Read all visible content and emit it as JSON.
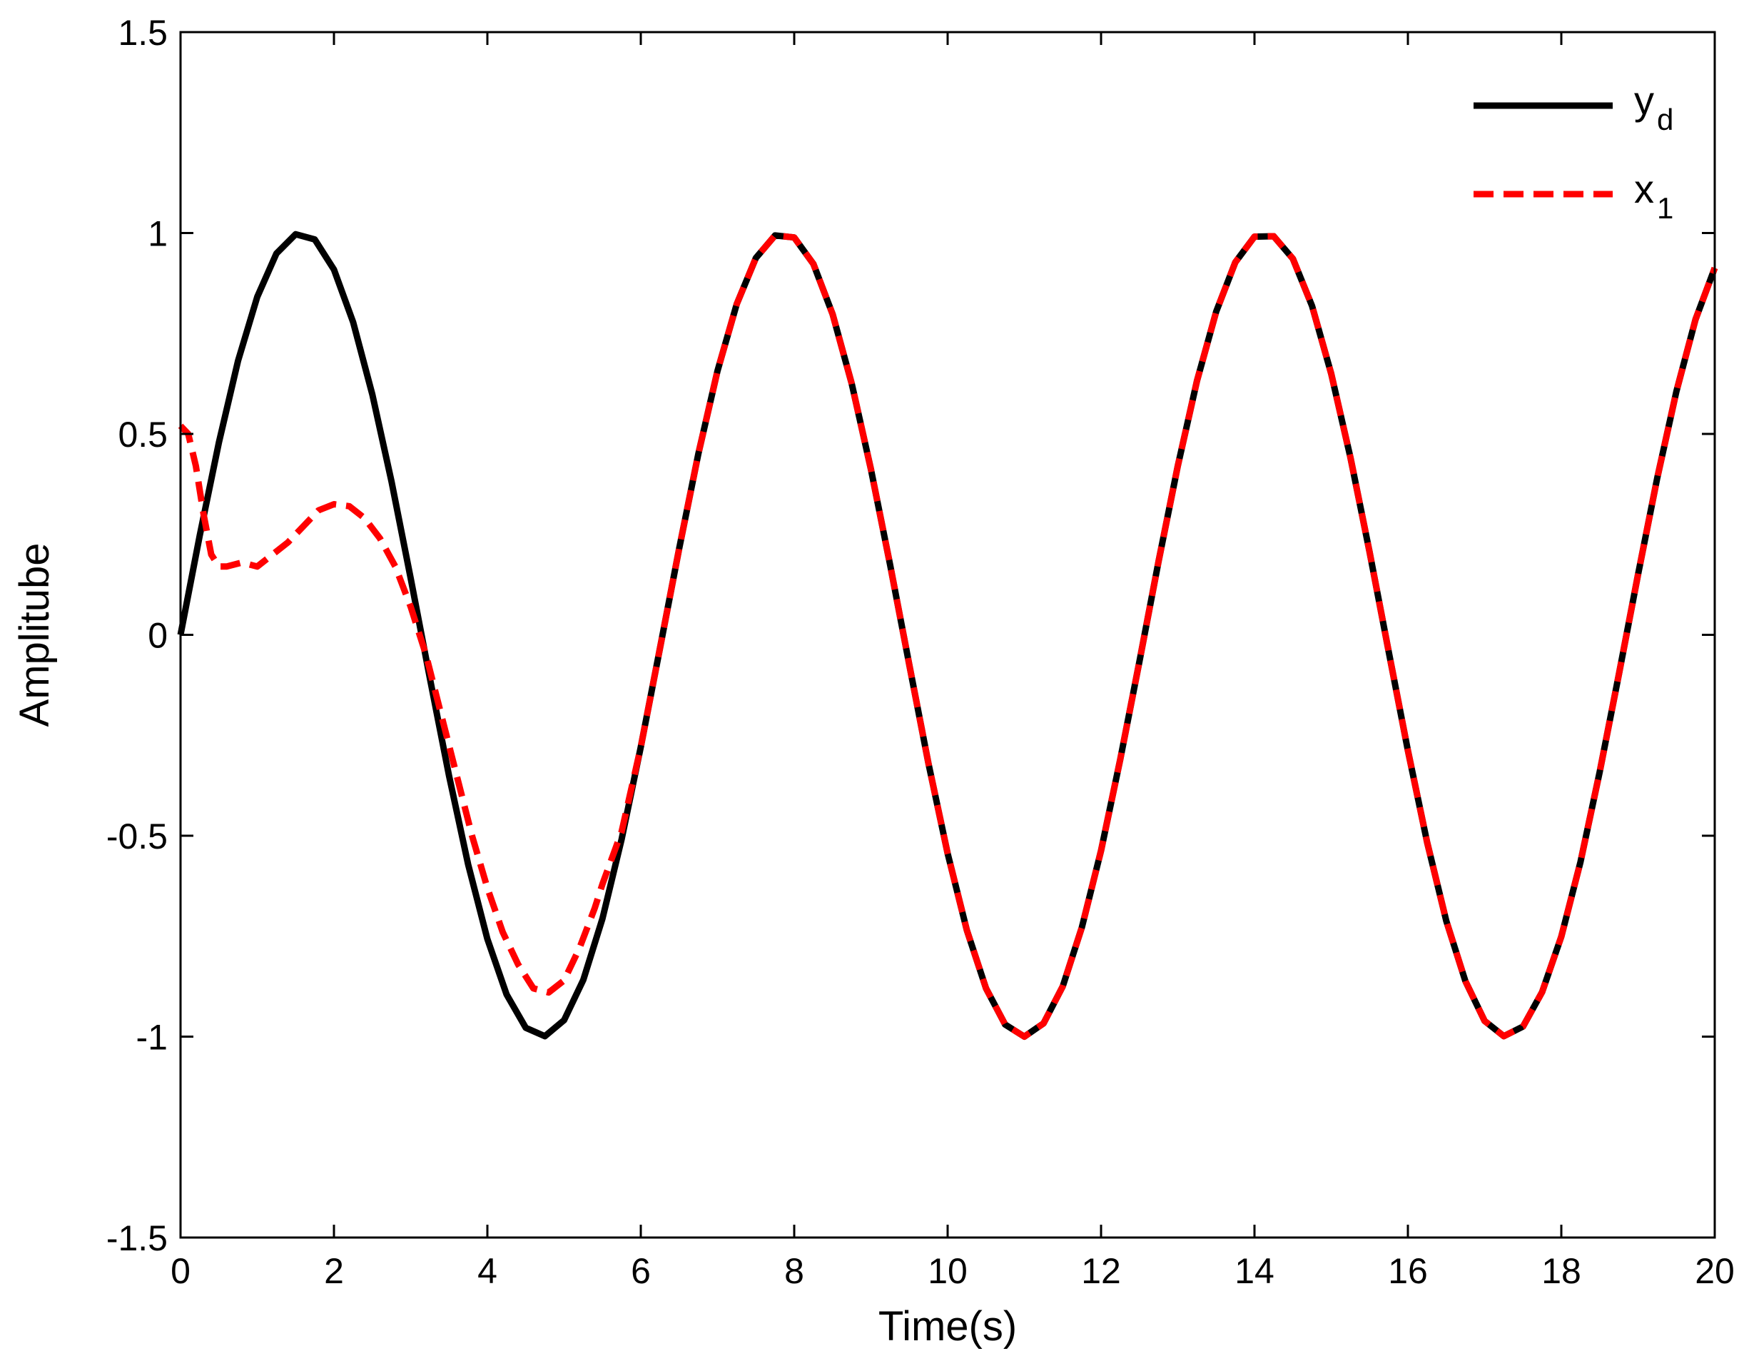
{
  "chart_data": {
    "type": "line",
    "title": "",
    "xlabel": "Time(s)",
    "ylabel": "Amplitube",
    "xlim": [
      0,
      20
    ],
    "ylim": [
      -1.5,
      1.5
    ],
    "xticks": [
      0,
      2,
      4,
      6,
      8,
      10,
      12,
      14,
      16,
      18,
      20
    ],
    "yticks": [
      -1.5,
      -1,
      -0.5,
      0,
      0.5,
      1,
      1.5
    ],
    "xtick_labels": [
      "0",
      "2",
      "4",
      "6",
      "8",
      "10",
      "12",
      "14",
      "16",
      "18",
      "20"
    ],
    "ytick_labels": [
      "-1.5",
      "-1",
      "-0.5",
      "0",
      "0.5",
      "1",
      "1.5"
    ],
    "grid": false,
    "legend_position": "top-right",
    "series": [
      {
        "name": "y_d",
        "legend_main": "y",
        "legend_sub": "d",
        "color": "#000000",
        "style": "solid",
        "x": [
          0,
          0.25,
          0.5,
          0.75,
          1,
          1.25,
          1.5,
          1.75,
          2,
          2.25,
          2.5,
          2.75,
          3,
          3.25,
          3.5,
          3.75,
          4,
          4.25,
          4.5,
          4.75,
          5,
          5.25,
          5.5,
          5.75,
          6,
          6.25,
          6.5,
          6.75,
          7,
          7.25,
          7.5,
          7.75,
          8,
          8.25,
          8.5,
          8.75,
          9,
          9.25,
          9.5,
          9.75,
          10,
          10.25,
          10.5,
          10.75,
          11,
          11.25,
          11.5,
          11.75,
          12,
          12.25,
          12.5,
          12.75,
          13,
          13.25,
          13.5,
          13.75,
          14,
          14.25,
          14.5,
          14.75,
          15,
          15.25,
          15.5,
          15.75,
          16,
          16.25,
          16.5,
          16.75,
          17,
          17.25,
          17.5,
          17.75,
          18,
          18.25,
          18.5,
          18.75,
          19,
          19.25,
          19.5,
          19.75,
          20
        ],
        "y": [
          0,
          0.247,
          0.479,
          0.682,
          0.841,
          0.949,
          0.997,
          0.984,
          0.909,
          0.778,
          0.598,
          0.382,
          0.141,
          -0.108,
          -0.351,
          -0.572,
          -0.757,
          -0.895,
          -0.978,
          -0.999,
          -0.959,
          -0.859,
          -0.706,
          -0.509,
          -0.279,
          -0.033,
          0.215,
          0.45,
          0.657,
          0.823,
          0.938,
          0.994,
          0.989,
          0.923,
          0.798,
          0.625,
          0.412,
          0.174,
          -0.075,
          -0.32,
          -0.544,
          -0.735,
          -0.88,
          -0.97,
          -1.0,
          -0.967,
          -0.875,
          -0.728,
          -0.537,
          -0.31,
          -0.066,
          0.183,
          0.42,
          0.632,
          0.804,
          0.927,
          0.991,
          0.992,
          0.936,
          0.819,
          0.65,
          0.442,
          0.206,
          -0.042,
          -0.288,
          -0.516,
          -0.712,
          -0.862,
          -0.961,
          -0.999,
          -0.975,
          -0.889,
          -0.751,
          -0.565,
          -0.341,
          -0.099,
          0.15,
          0.39,
          0.606,
          0.785,
          0.913
        ]
      },
      {
        "name": "x_1",
        "legend_main": "x",
        "legend_sub": "1",
        "color": "#ff0000",
        "style": "dashed",
        "x": [
          0,
          0.1,
          0.2,
          0.3,
          0.4,
          0.5,
          0.6,
          0.8,
          1.0,
          1.2,
          1.4,
          1.6,
          1.8,
          2.0,
          2.2,
          2.4,
          2.6,
          2.8,
          3.0,
          3.2,
          3.4,
          3.6,
          3.8,
          4.0,
          4.2,
          4.4,
          4.6,
          4.8,
          5.0,
          5.2,
          5.4,
          5.5,
          5.75,
          6,
          6.25,
          6.5,
          6.75,
          7,
          7.25,
          7.5,
          7.75,
          8,
          8.25,
          8.5,
          8.75,
          9,
          9.25,
          9.5,
          9.75,
          10,
          10.25,
          10.5,
          10.75,
          11,
          11.25,
          11.5,
          11.75,
          12,
          12.25,
          12.5,
          12.75,
          13,
          13.25,
          13.5,
          13.75,
          14,
          14.25,
          14.5,
          14.75,
          15,
          15.25,
          15.5,
          15.75,
          16,
          16.25,
          16.5,
          16.75,
          17,
          17.25,
          17.5,
          17.75,
          18,
          18.25,
          18.5,
          18.75,
          19,
          19.25,
          19.5,
          19.75,
          20
        ],
        "y": [
          0.52,
          0.5,
          0.42,
          0.3,
          0.2,
          0.17,
          0.17,
          0.18,
          0.17,
          0.2,
          0.23,
          0.27,
          0.31,
          0.325,
          0.32,
          0.29,
          0.24,
          0.17,
          0.07,
          -0.05,
          -0.2,
          -0.35,
          -0.5,
          -0.63,
          -0.74,
          -0.82,
          -0.88,
          -0.89,
          -0.86,
          -0.78,
          -0.68,
          -0.62,
          -0.49,
          -0.279,
          -0.033,
          0.215,
          0.45,
          0.657,
          0.823,
          0.938,
          0.994,
          0.989,
          0.923,
          0.798,
          0.625,
          0.412,
          0.174,
          -0.075,
          -0.32,
          -0.544,
          -0.735,
          -0.88,
          -0.97,
          -1.0,
          -0.967,
          -0.875,
          -0.728,
          -0.537,
          -0.31,
          -0.066,
          0.183,
          0.42,
          0.632,
          0.804,
          0.927,
          0.991,
          0.992,
          0.936,
          0.819,
          0.65,
          0.442,
          0.206,
          -0.042,
          -0.288,
          -0.516,
          -0.712,
          -0.862,
          -0.961,
          -0.999,
          -0.975,
          -0.889,
          -0.751,
          -0.565,
          -0.341,
          -0.099,
          0.15,
          0.39,
          0.606,
          0.785,
          0.913
        ]
      }
    ]
  }
}
